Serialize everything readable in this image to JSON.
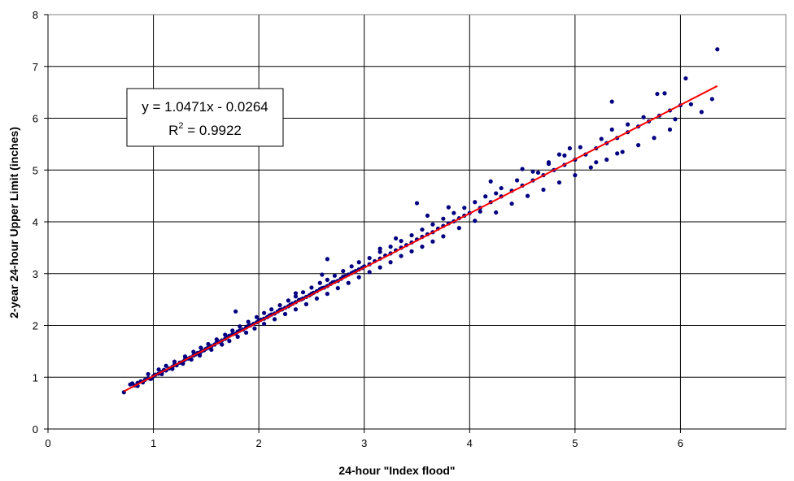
{
  "chart_data": {
    "type": "scatter",
    "xlabel": "24-hour \"Index flood\"",
    "ylabel": "2-year 24-hour Upper Limit (inches)",
    "xlim": [
      0,
      7
    ],
    "ylim": [
      0,
      8
    ],
    "x_ticks": [
      "0",
      "1",
      "2",
      "3",
      "4",
      "5",
      "6"
    ],
    "y_ticks": [
      "0",
      "1",
      "2",
      "3",
      "4",
      "5",
      "6",
      "7",
      "8"
    ],
    "grid": true,
    "colors": {
      "points": "#000080",
      "trendline": "#ff0000"
    },
    "annotation": {
      "equation": "y = 1.0471x - 0.0264",
      "r2_prefix": "R",
      "r2_sup": "2",
      "r2_suffix": " = 0.9922"
    },
    "trendline": {
      "slope": 1.0471,
      "intercept": -0.0264,
      "x_range": [
        0.72,
        6.35
      ]
    },
    "series": [
      {
        "points": [
          [
            0.72,
            0.71
          ],
          [
            0.78,
            0.86
          ],
          [
            0.82,
            0.84
          ],
          [
            0.85,
            0.89
          ],
          [
            0.88,
            0.92
          ],
          [
            0.9,
            0.9
          ],
          [
            0.92,
            0.95
          ],
          [
            0.95,
            0.98
          ],
          [
            0.97,
            0.97
          ],
          [
            1.0,
            1.02
          ],
          [
            1.02,
            1.05
          ],
          [
            1.05,
            1.07
          ],
          [
            1.08,
            1.1
          ],
          [
            1.1,
            1.14
          ],
          [
            1.12,
            1.13
          ],
          [
            1.15,
            1.17
          ],
          [
            1.18,
            1.2
          ],
          [
            1.2,
            1.24
          ],
          [
            1.22,
            1.23
          ],
          [
            1.25,
            1.28
          ],
          [
            1.28,
            1.3
          ],
          [
            1.3,
            1.34
          ],
          [
            1.33,
            1.36
          ],
          [
            1.35,
            1.38
          ],
          [
            1.38,
            1.42
          ],
          [
            1.4,
            1.44
          ],
          [
            1.42,
            1.47
          ],
          [
            1.45,
            1.49
          ],
          [
            1.48,
            1.52
          ],
          [
            1.5,
            1.55
          ],
          [
            1.52,
            1.57
          ],
          [
            1.55,
            1.6
          ],
          [
            1.58,
            1.63
          ],
          [
            1.6,
            1.67
          ],
          [
            1.62,
            1.68
          ],
          [
            1.65,
            1.71
          ],
          [
            1.68,
            1.74
          ],
          [
            1.7,
            1.77
          ],
          [
            1.72,
            1.8
          ],
          [
            1.75,
            1.83
          ],
          [
            1.78,
            1.84
          ],
          [
            1.8,
            1.88
          ],
          [
            1.82,
            1.9
          ],
          [
            1.85,
            1.92
          ],
          [
            1.88,
            1.96
          ],
          [
            1.9,
            1.99
          ],
          [
            1.92,
            2.0
          ],
          [
            1.95,
            2.03
          ],
          [
            1.98,
            2.06
          ],
          [
            2.0,
            2.09
          ],
          [
            2.02,
            2.11
          ],
          [
            2.05,
            2.13
          ],
          [
            2.08,
            2.16
          ],
          [
            2.1,
            2.19
          ],
          [
            2.12,
            2.21
          ],
          [
            2.15,
            2.23
          ],
          [
            2.18,
            2.27
          ],
          [
            2.2,
            2.3
          ],
          [
            2.22,
            2.31
          ],
          [
            2.25,
            2.34
          ],
          [
            2.28,
            2.37
          ],
          [
            2.3,
            2.4
          ],
          [
            2.32,
            2.42
          ],
          [
            2.35,
            2.45
          ],
          [
            2.38,
            2.49
          ],
          [
            2.4,
            2.5
          ],
          [
            2.42,
            2.52
          ],
          [
            2.45,
            2.55
          ],
          [
            2.48,
            2.58
          ],
          [
            2.5,
            2.61
          ],
          [
            2.52,
            2.63
          ],
          [
            2.55,
            2.66
          ],
          [
            2.58,
            2.7
          ],
          [
            2.6,
            2.72
          ],
          [
            2.62,
            2.73
          ],
          [
            2.65,
            2.76
          ],
          [
            2.68,
            2.8
          ],
          [
            2.7,
            2.83
          ],
          [
            2.72,
            2.84
          ],
          [
            2.75,
            2.86
          ],
          [
            2.78,
            2.9
          ],
          [
            2.8,
            2.94
          ],
          [
            2.82,
            2.95
          ],
          [
            2.85,
            2.98
          ],
          [
            2.88,
            3.01
          ],
          [
            2.9,
            3.03
          ],
          [
            2.92,
            3.05
          ],
          [
            2.95,
            3.08
          ],
          [
            2.98,
            3.11
          ],
          [
            3.0,
            3.14
          ],
          [
            3.05,
            3.18
          ],
          [
            3.1,
            3.24
          ],
          [
            3.15,
            3.29
          ],
          [
            3.2,
            3.35
          ],
          [
            3.25,
            3.39
          ],
          [
            3.3,
            3.45
          ],
          [
            3.35,
            3.5
          ],
          [
            3.4,
            3.55
          ],
          [
            3.45,
            3.6
          ],
          [
            3.5,
            3.66
          ],
          [
            3.55,
            3.71
          ],
          [
            3.6,
            3.76
          ],
          [
            3.65,
            3.8
          ],
          [
            3.7,
            3.87
          ],
          [
            3.75,
            3.92
          ],
          [
            3.8,
            3.97
          ],
          [
            3.85,
            4.01
          ],
          [
            3.9,
            4.07
          ],
          [
            3.95,
            4.12
          ],
          [
            4.0,
            4.17
          ],
          [
            4.1,
            4.27
          ],
          [
            4.2,
            4.38
          ],
          [
            4.3,
            4.49
          ],
          [
            4.4,
            4.6
          ],
          [
            4.5,
            4.7
          ],
          [
            4.6,
            4.8
          ],
          [
            4.7,
            4.9
          ],
          [
            4.8,
            5.0
          ],
          [
            4.9,
            5.1
          ],
          [
            5.0,
            5.2
          ],
          [
            5.1,
            5.3
          ],
          [
            5.2,
            5.42
          ],
          [
            5.3,
            5.52
          ],
          [
            5.4,
            5.62
          ],
          [
            5.5,
            5.73
          ],
          [
            5.6,
            5.84
          ],
          [
            5.7,
            5.94
          ],
          [
            5.8,
            6.05
          ],
          [
            5.9,
            6.15
          ],
          [
            6.0,
            6.25
          ],
          [
            0.8,
            0.88
          ],
          [
            0.95,
            1.06
          ],
          [
            1.05,
            1.15
          ],
          [
            1.12,
            1.22
          ],
          [
            1.2,
            1.3
          ],
          [
            1.3,
            1.4
          ],
          [
            1.38,
            1.49
          ],
          [
            1.45,
            1.57
          ],
          [
            1.52,
            1.64
          ],
          [
            1.6,
            1.73
          ],
          [
            1.68,
            1.82
          ],
          [
            1.75,
            1.9
          ],
          [
            1.82,
            1.98
          ],
          [
            1.9,
            2.07
          ],
          [
            1.98,
            2.16
          ],
          [
            2.05,
            2.24
          ],
          [
            2.12,
            2.31
          ],
          [
            2.2,
            2.39
          ],
          [
            2.28,
            2.48
          ],
          [
            2.35,
            2.56
          ],
          [
            2.42,
            2.64
          ],
          [
            2.5,
            2.73
          ],
          [
            2.58,
            2.82
          ],
          [
            2.65,
            2.88
          ],
          [
            2.72,
            2.96
          ],
          [
            2.8,
            3.05
          ],
          [
            2.88,
            3.14
          ],
          [
            2.95,
            3.22
          ],
          [
            3.05,
            3.3
          ],
          [
            3.15,
            3.42
          ],
          [
            3.25,
            3.52
          ],
          [
            3.35,
            3.63
          ],
          [
            3.45,
            3.74
          ],
          [
            3.55,
            3.85
          ],
          [
            3.65,
            3.95
          ],
          [
            3.75,
            4.06
          ],
          [
            3.85,
            4.17
          ],
          [
            3.95,
            4.27
          ],
          [
            4.05,
            4.38
          ],
          [
            4.15,
            4.49
          ],
          [
            4.3,
            4.65
          ],
          [
            4.45,
            4.8
          ],
          [
            4.6,
            4.97
          ],
          [
            4.75,
            5.12
          ],
          [
            4.9,
            5.28
          ],
          [
            5.05,
            5.44
          ],
          [
            0.85,
            0.83
          ],
          [
            0.98,
            0.97
          ],
          [
            1.08,
            1.06
          ],
          [
            1.18,
            1.16
          ],
          [
            1.28,
            1.26
          ],
          [
            1.36,
            1.34
          ],
          [
            1.44,
            1.42
          ],
          [
            1.55,
            1.53
          ],
          [
            1.65,
            1.63
          ],
          [
            1.72,
            1.7
          ],
          [
            1.8,
            1.78
          ],
          [
            1.88,
            1.86
          ],
          [
            1.96,
            1.94
          ],
          [
            2.05,
            2.03
          ],
          [
            2.15,
            2.12
          ],
          [
            2.25,
            2.22
          ],
          [
            2.35,
            2.31
          ],
          [
            2.45,
            2.41
          ],
          [
            2.55,
            2.52
          ],
          [
            2.65,
            2.61
          ],
          [
            2.75,
            2.72
          ],
          [
            2.85,
            2.82
          ],
          [
            2.95,
            2.93
          ],
          [
            3.05,
            3.03
          ],
          [
            3.15,
            3.12
          ],
          [
            3.25,
            3.22
          ],
          [
            3.35,
            3.34
          ],
          [
            3.45,
            3.43
          ],
          [
            3.55,
            3.52
          ],
          [
            3.65,
            3.62
          ],
          [
            3.75,
            3.72
          ],
          [
            3.9,
            3.88
          ],
          [
            4.05,
            4.02
          ],
          [
            4.25,
            4.18
          ],
          [
            4.4,
            4.35
          ],
          [
            4.55,
            4.5
          ],
          [
            4.7,
            4.62
          ],
          [
            4.85,
            4.76
          ],
          [
            5.0,
            4.9
          ],
          [
            5.15,
            5.05
          ],
          [
            5.3,
            5.2
          ],
          [
            5.45,
            5.35
          ],
          [
            5.6,
            5.48
          ],
          [
            5.75,
            5.62
          ],
          [
            5.9,
            5.78
          ],
          [
            1.78,
            2.27
          ],
          [
            2.65,
            3.28
          ],
          [
            3.5,
            4.36
          ],
          [
            4.2,
            4.78
          ],
          [
            4.5,
            5.02
          ],
          [
            5.35,
            6.32
          ],
          [
            5.78,
            6.47
          ],
          [
            5.85,
            6.48
          ],
          [
            6.05,
            6.77
          ],
          [
            6.2,
            6.12
          ],
          [
            6.35,
            7.33
          ],
          [
            6.3,
            6.37
          ],
          [
            6.1,
            6.27
          ],
          [
            5.95,
            5.98
          ],
          [
            5.65,
            6.02
          ],
          [
            5.4,
            5.32
          ],
          [
            5.2,
            5.15
          ],
          [
            4.95,
            5.42
          ],
          [
            4.75,
            5.15
          ],
          [
            4.65,
            4.95
          ],
          [
            3.8,
            4.28
          ],
          [
            3.6,
            4.12
          ],
          [
            2.6,
            2.98
          ],
          [
            2.35,
            2.62
          ],
          [
            3.15,
            3.48
          ],
          [
            3.3,
            3.68
          ],
          [
            5.35,
            5.78
          ],
          [
            5.5,
            5.88
          ],
          [
            5.25,
            5.6
          ],
          [
            4.85,
            5.3
          ],
          [
            4.25,
            4.55
          ],
          [
            4.1,
            4.2
          ]
        ]
      }
    ]
  }
}
